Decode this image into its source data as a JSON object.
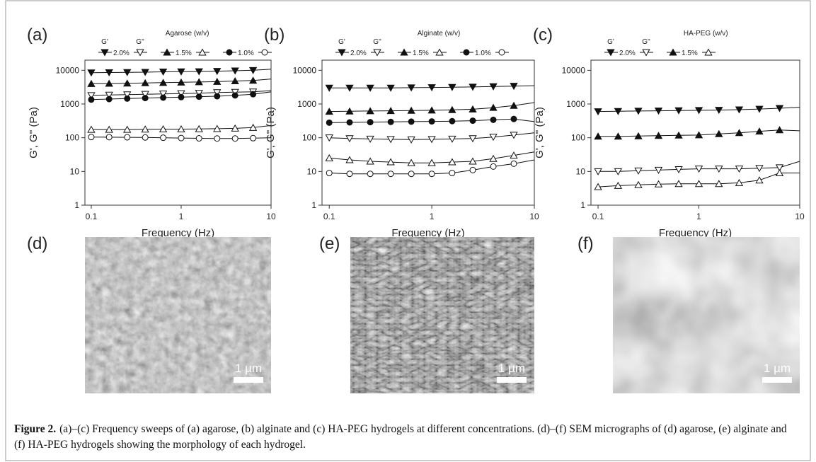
{
  "chart_data": [
    {
      "type": "line",
      "label": "(a)",
      "legend_title": "Agarose (w/v)",
      "legend_headers": [
        "G'",
        "G''"
      ],
      "x_label": "Frequency (Hz)",
      "y_label": "G', G'' (Pa)",
      "log_x": true,
      "log_y": true,
      "color": "#111111",
      "x": [
        0.1,
        0.158,
        0.251,
        0.398,
        0.631,
        1,
        1.58,
        2.51,
        3.98,
        6.31,
        10
      ],
      "xlim": [
        0.085,
        10
      ],
      "ylim": [
        1,
        20000
      ],
      "xticks": [
        0.1,
        1,
        10
      ],
      "yticks": [
        1,
        10,
        100,
        1000,
        10000
      ],
      "series": [
        {
          "name": "2.0%",
          "marker": "down-triangle",
          "g_prime": [
            8500,
            8600,
            8700,
            8800,
            9000,
            9100,
            9200,
            9400,
            9700,
            10000,
            10800
          ],
          "g_double_prime": [
            1800,
            1850,
            1900,
            1950,
            2000,
            2050,
            2100,
            2200,
            2250,
            2300,
            2500
          ]
        },
        {
          "name": "1.5%",
          "marker": "up-triangle",
          "g_prime": [
            4000,
            4050,
            4100,
            4200,
            4300,
            4400,
            4500,
            4600,
            4800,
            5000,
            5500
          ],
          "g_double_prime": [
            175,
            175,
            175,
            178,
            180,
            180,
            182,
            185,
            190,
            200,
            230
          ]
        },
        {
          "name": "1.0%",
          "marker": "circle",
          "g_prime": [
            1350,
            1400,
            1450,
            1500,
            1550,
            1600,
            1650,
            1700,
            1800,
            1950,
            2300
          ],
          "g_double_prime": [
            105,
            104,
            103,
            102,
            100,
            98,
            96,
            95,
            95,
            97,
            100
          ]
        }
      ]
    },
    {
      "type": "line",
      "label": "(b)",
      "legend_title": "Alginate (w/v)",
      "legend_headers": [
        "G'",
        "G''"
      ],
      "x_label": "Frequency (Hz)",
      "y_label": "G', G'' (Pa)",
      "log_x": true,
      "log_y": true,
      "color": "#111111",
      "x": [
        0.1,
        0.158,
        0.251,
        0.398,
        0.631,
        1,
        1.58,
        2.51,
        3.98,
        6.31,
        10
      ],
      "xlim": [
        0.085,
        10
      ],
      "ylim": [
        1,
        20000
      ],
      "xticks": [
        0.1,
        1,
        10
      ],
      "yticks": [
        1,
        10,
        100,
        1000,
        10000
      ],
      "series": [
        {
          "name": "2.0%",
          "marker": "down-triangle",
          "g_prime": [
            3000,
            3000,
            3000,
            3000,
            3050,
            3100,
            3150,
            3200,
            3300,
            3400,
            3500
          ],
          "g_double_prime": [
            100,
            95,
            92,
            90,
            88,
            90,
            92,
            95,
            105,
            120,
            140
          ]
        },
        {
          "name": "1.5%",
          "marker": "up-triangle",
          "g_prime": [
            600,
            610,
            620,
            630,
            640,
            650,
            670,
            700,
            780,
            900,
            1100
          ],
          "g_double_prime": [
            25,
            22,
            20,
            19,
            18,
            18,
            19,
            20,
            24,
            30,
            38
          ]
        },
        {
          "name": "1.0%",
          "marker": "circle",
          "g_prime": [
            280,
            285,
            290,
            295,
            300,
            305,
            310,
            320,
            340,
            360,
            300
          ],
          "g_double_prime": [
            9,
            8.5,
            8.5,
            8.5,
            8.5,
            8.5,
            9,
            11,
            14,
            17,
            22
          ]
        }
      ]
    },
    {
      "type": "line",
      "label": "(c)",
      "legend_title": "HA-PEG (w/v)",
      "legend_headers": [
        "G'",
        "G''"
      ],
      "x_label": "Frequency (Hz)",
      "y_label": "G', G'' (Pa)",
      "log_x": true,
      "log_y": true,
      "color": "#111111",
      "x": [
        0.1,
        0.158,
        0.251,
        0.398,
        0.631,
        1,
        1.58,
        2.51,
        3.98,
        6.31,
        10
      ],
      "xlim": [
        0.085,
        10
      ],
      "ylim": [
        1,
        20000
      ],
      "xticks": [
        0.1,
        1,
        10
      ],
      "yticks": [
        1,
        10,
        100,
        1000,
        10000
      ],
      "series": [
        {
          "name": "2.0%",
          "marker": "down-triangle",
          "g_prime": [
            600,
            610,
            620,
            630,
            640,
            650,
            660,
            680,
            710,
            750,
            800
          ],
          "g_double_prime": [
            10,
            10,
            10.5,
            11,
            11.5,
            12,
            12,
            12,
            12.5,
            13,
            20
          ]
        },
        {
          "name": "1.5%",
          "marker": "up-triangle",
          "g_prime": [
            110,
            110,
            112,
            115,
            118,
            120,
            130,
            140,
            155,
            170,
            160
          ],
          "g_double_prime": [
            3.5,
            3.8,
            4,
            4.2,
            4.3,
            4.3,
            4.3,
            4.6,
            5.5,
            9,
            9
          ]
        }
      ]
    }
  ],
  "sem_panels": [
    {
      "label": "(d)",
      "scale_bar": "1 µm"
    },
    {
      "label": "(e)",
      "scale_bar": "1 µm"
    },
    {
      "label": "(f)",
      "scale_bar": "1 µm"
    }
  ],
  "caption": {
    "label": "Figure 2.",
    "text": "(a)–(c) Frequency sweeps of (a) agarose, (b) alginate and (c) HA-PEG hydrogels at different concentrations. (d)–(f) SEM micrographs of (d) agarose, (e) alginate and (f) HA-PEG hydrogels showing the morphology of each hydrogel."
  }
}
